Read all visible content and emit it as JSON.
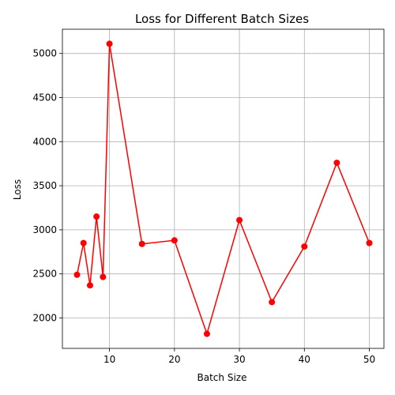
{
  "chart_data": {
    "type": "line",
    "title": "Loss for Different Batch Sizes",
    "xlabel": "Batch Size",
    "ylabel": "Loss",
    "x": [
      5,
      6,
      7,
      8,
      9,
      10,
      15,
      20,
      25,
      30,
      35,
      40,
      45,
      50
    ],
    "series": [
      {
        "values": [
          2490,
          2850,
          2370,
          3150,
          2465,
          5110,
          2840,
          2880,
          1820,
          3110,
          2180,
          2810,
          3760,
          2850
        ],
        "color": "#ff0000",
        "marker": "circle"
      }
    ],
    "xlim": [
      2.75,
      52.25
    ],
    "ylim": [
      1655,
      5275
    ],
    "xticks": [
      10,
      20,
      30,
      40,
      50
    ],
    "yticks": [
      2000,
      2500,
      3000,
      3500,
      4000,
      4500,
      5000
    ],
    "grid": true,
    "legend": "none"
  }
}
